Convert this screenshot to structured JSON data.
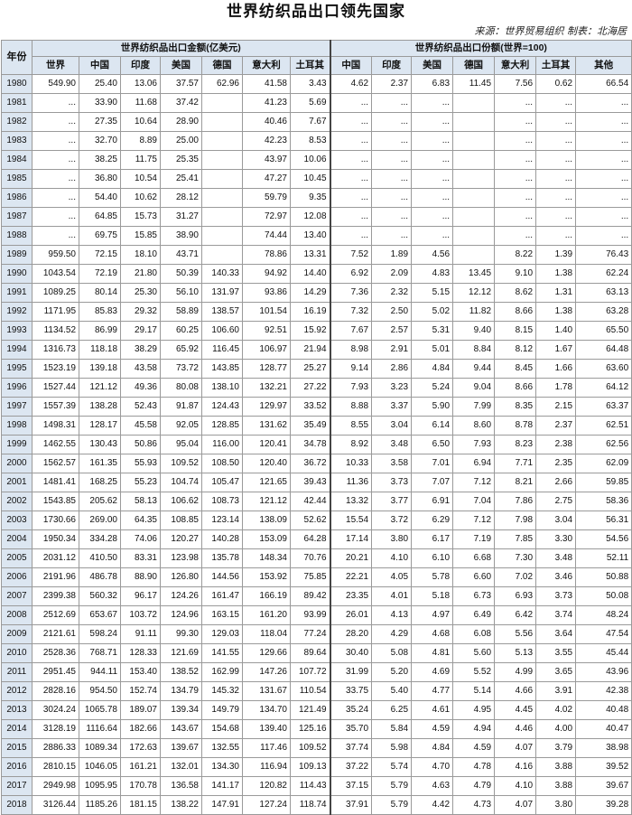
{
  "title": "世界纺织品出口领先国家",
  "source": "来源：世界贸易组织   制表：北海居",
  "header": {
    "year": "年份",
    "group_amount": "世界纺织品出口金额(亿美元)",
    "group_share": "世界纺织品出口份额(世界=100)",
    "amount_cols": [
      "世界",
      "中国",
      "印度",
      "美国",
      "德国",
      "意大利",
      "土耳其"
    ],
    "share_cols": [
      "中国",
      "印度",
      "美国",
      "德国",
      "意大利",
      "土耳其",
      "其他"
    ]
  },
  "rows": [
    [
      "1980",
      "549.90",
      "25.40",
      "13.06",
      "37.57",
      "62.96",
      "41.58",
      "3.43",
      "4.62",
      "2.37",
      "6.83",
      "11.45",
      "7.56",
      "0.62",
      "66.54"
    ],
    [
      "1981",
      "...",
      "33.90",
      "11.68",
      "37.42",
      "",
      "41.23",
      "5.69",
      "...",
      "...",
      "...",
      "",
      "...",
      "...",
      "..."
    ],
    [
      "1982",
      "...",
      "27.35",
      "10.64",
      "28.90",
      "",
      "40.46",
      "7.67",
      "...",
      "...",
      "...",
      "",
      "...",
      "...",
      "..."
    ],
    [
      "1983",
      "...",
      "32.70",
      "8.89",
      "25.00",
      "",
      "42.23",
      "8.53",
      "...",
      "...",
      "...",
      "",
      "...",
      "...",
      "..."
    ],
    [
      "1984",
      "...",
      "38.25",
      "11.75",
      "25.35",
      "",
      "43.97",
      "10.06",
      "...",
      "...",
      "...",
      "",
      "...",
      "...",
      "..."
    ],
    [
      "1985",
      "...",
      "36.80",
      "10.54",
      "25.41",
      "",
      "47.27",
      "10.45",
      "...",
      "...",
      "...",
      "",
      "...",
      "...",
      "..."
    ],
    [
      "1986",
      "...",
      "54.40",
      "10.62",
      "28.12",
      "",
      "59.79",
      "9.35",
      "...",
      "...",
      "...",
      "",
      "...",
      "...",
      "..."
    ],
    [
      "1987",
      "...",
      "64.85",
      "15.73",
      "31.27",
      "",
      "72.97",
      "12.08",
      "...",
      "...",
      "...",
      "",
      "...",
      "...",
      "..."
    ],
    [
      "1988",
      "...",
      "69.75",
      "15.85",
      "38.90",
      "",
      "74.44",
      "13.40",
      "...",
      "...",
      "...",
      "",
      "...",
      "...",
      "..."
    ],
    [
      "1989",
      "959.50",
      "72.15",
      "18.10",
      "43.71",
      "",
      "78.86",
      "13.31",
      "7.52",
      "1.89",
      "4.56",
      "",
      "8.22",
      "1.39",
      "76.43"
    ],
    [
      "1990",
      "1043.54",
      "72.19",
      "21.80",
      "50.39",
      "140.33",
      "94.92",
      "14.40",
      "6.92",
      "2.09",
      "4.83",
      "13.45",
      "9.10",
      "1.38",
      "62.24"
    ],
    [
      "1991",
      "1089.25",
      "80.14",
      "25.30",
      "56.10",
      "131.97",
      "93.86",
      "14.29",
      "7.36",
      "2.32",
      "5.15",
      "12.12",
      "8.62",
      "1.31",
      "63.13"
    ],
    [
      "1992",
      "1171.95",
      "85.83",
      "29.32",
      "58.89",
      "138.57",
      "101.54",
      "16.19",
      "7.32",
      "2.50",
      "5.02",
      "11.82",
      "8.66",
      "1.38",
      "63.28"
    ],
    [
      "1993",
      "1134.52",
      "86.99",
      "29.17",
      "60.25",
      "106.60",
      "92.51",
      "15.92",
      "7.67",
      "2.57",
      "5.31",
      "9.40",
      "8.15",
      "1.40",
      "65.50"
    ],
    [
      "1994",
      "1316.73",
      "118.18",
      "38.29",
      "65.92",
      "116.45",
      "106.97",
      "21.94",
      "8.98",
      "2.91",
      "5.01",
      "8.84",
      "8.12",
      "1.67",
      "64.48"
    ],
    [
      "1995",
      "1523.19",
      "139.18",
      "43.58",
      "73.72",
      "143.85",
      "128.77",
      "25.27",
      "9.14",
      "2.86",
      "4.84",
      "9.44",
      "8.45",
      "1.66",
      "63.60"
    ],
    [
      "1996",
      "1527.44",
      "121.12",
      "49.36",
      "80.08",
      "138.10",
      "132.21",
      "27.22",
      "7.93",
      "3.23",
      "5.24",
      "9.04",
      "8.66",
      "1.78",
      "64.12"
    ],
    [
      "1997",
      "1557.39",
      "138.28",
      "52.43",
      "91.87",
      "124.43",
      "129.97",
      "33.52",
      "8.88",
      "3.37",
      "5.90",
      "7.99",
      "8.35",
      "2.15",
      "63.37"
    ],
    [
      "1998",
      "1498.31",
      "128.17",
      "45.58",
      "92.05",
      "128.85",
      "131.62",
      "35.49",
      "8.55",
      "3.04",
      "6.14",
      "8.60",
      "8.78",
      "2.37",
      "62.51"
    ],
    [
      "1999",
      "1462.55",
      "130.43",
      "50.86",
      "95.04",
      "116.00",
      "120.41",
      "34.78",
      "8.92",
      "3.48",
      "6.50",
      "7.93",
      "8.23",
      "2.38",
      "62.56"
    ],
    [
      "2000",
      "1562.57",
      "161.35",
      "55.93",
      "109.52",
      "108.50",
      "120.40",
      "36.72",
      "10.33",
      "3.58",
      "7.01",
      "6.94",
      "7.71",
      "2.35",
      "62.09"
    ],
    [
      "2001",
      "1481.41",
      "168.25",
      "55.23",
      "104.74",
      "105.47",
      "121.65",
      "39.43",
      "11.36",
      "3.73",
      "7.07",
      "7.12",
      "8.21",
      "2.66",
      "59.85"
    ],
    [
      "2002",
      "1543.85",
      "205.62",
      "58.13",
      "106.62",
      "108.73",
      "121.12",
      "42.44",
      "13.32",
      "3.77",
      "6.91",
      "7.04",
      "7.86",
      "2.75",
      "58.36"
    ],
    [
      "2003",
      "1730.66",
      "269.00",
      "64.35",
      "108.85",
      "123.14",
      "138.09",
      "52.62",
      "15.54",
      "3.72",
      "6.29",
      "7.12",
      "7.98",
      "3.04",
      "56.31"
    ],
    [
      "2004",
      "1950.34",
      "334.28",
      "74.06",
      "120.27",
      "140.28",
      "153.09",
      "64.28",
      "17.14",
      "3.80",
      "6.17",
      "7.19",
      "7.85",
      "3.30",
      "54.56"
    ],
    [
      "2005",
      "2031.12",
      "410.50",
      "83.31",
      "123.98",
      "135.78",
      "148.34",
      "70.76",
      "20.21",
      "4.10",
      "6.10",
      "6.68",
      "7.30",
      "3.48",
      "52.11"
    ],
    [
      "2006",
      "2191.96",
      "486.78",
      "88.90",
      "126.80",
      "144.56",
      "153.92",
      "75.85",
      "22.21",
      "4.05",
      "5.78",
      "6.60",
      "7.02",
      "3.46",
      "50.88"
    ],
    [
      "2007",
      "2399.38",
      "560.32",
      "96.17",
      "124.26",
      "161.47",
      "166.19",
      "89.42",
      "23.35",
      "4.01",
      "5.18",
      "6.73",
      "6.93",
      "3.73",
      "50.08"
    ],
    [
      "2008",
      "2512.69",
      "653.67",
      "103.72",
      "124.96",
      "163.15",
      "161.20",
      "93.99",
      "26.01",
      "4.13",
      "4.97",
      "6.49",
      "6.42",
      "3.74",
      "48.24"
    ],
    [
      "2009",
      "2121.61",
      "598.24",
      "91.11",
      "99.30",
      "129.03",
      "118.04",
      "77.24",
      "28.20",
      "4.29",
      "4.68",
      "6.08",
      "5.56",
      "3.64",
      "47.54"
    ],
    [
      "2010",
      "2528.36",
      "768.71",
      "128.33",
      "121.69",
      "141.55",
      "129.66",
      "89.64",
      "30.40",
      "5.08",
      "4.81",
      "5.60",
      "5.13",
      "3.55",
      "45.44"
    ],
    [
      "2011",
      "2951.45",
      "944.11",
      "153.40",
      "138.52",
      "162.99",
      "147.26",
      "107.72",
      "31.99",
      "5.20",
      "4.69",
      "5.52",
      "4.99",
      "3.65",
      "43.96"
    ],
    [
      "2012",
      "2828.16",
      "954.50",
      "152.74",
      "134.79",
      "145.32",
      "131.67",
      "110.54",
      "33.75",
      "5.40",
      "4.77",
      "5.14",
      "4.66",
      "3.91",
      "42.38"
    ],
    [
      "2013",
      "3024.24",
      "1065.78",
      "189.07",
      "139.34",
      "149.79",
      "134.70",
      "121.49",
      "35.24",
      "6.25",
      "4.61",
      "4.95",
      "4.45",
      "4.02",
      "40.48"
    ],
    [
      "2014",
      "3128.19",
      "1116.64",
      "182.66",
      "143.67",
      "154.68",
      "139.40",
      "125.16",
      "35.70",
      "5.84",
      "4.59",
      "4.94",
      "4.46",
      "4.00",
      "40.47"
    ],
    [
      "2015",
      "2886.33",
      "1089.34",
      "172.63",
      "139.67",
      "132.55",
      "117.46",
      "109.52",
      "37.74",
      "5.98",
      "4.84",
      "4.59",
      "4.07",
      "3.79",
      "38.98"
    ],
    [
      "2016",
      "2810.15",
      "1046.05",
      "161.21",
      "132.01",
      "134.30",
      "116.94",
      "109.13",
      "37.22",
      "5.74",
      "4.70",
      "4.78",
      "4.16",
      "3.88",
      "39.52"
    ],
    [
      "2017",
      "2949.98",
      "1095.95",
      "170.78",
      "136.58",
      "141.17",
      "120.82",
      "114.43",
      "37.15",
      "5.79",
      "4.63",
      "4.79",
      "4.10",
      "3.88",
      "39.67"
    ],
    [
      "2018",
      "3126.44",
      "1185.26",
      "181.15",
      "138.22",
      "147.91",
      "127.24",
      "118.74",
      "37.91",
      "5.79",
      "4.42",
      "4.73",
      "4.07",
      "3.80",
      "39.28"
    ]
  ]
}
